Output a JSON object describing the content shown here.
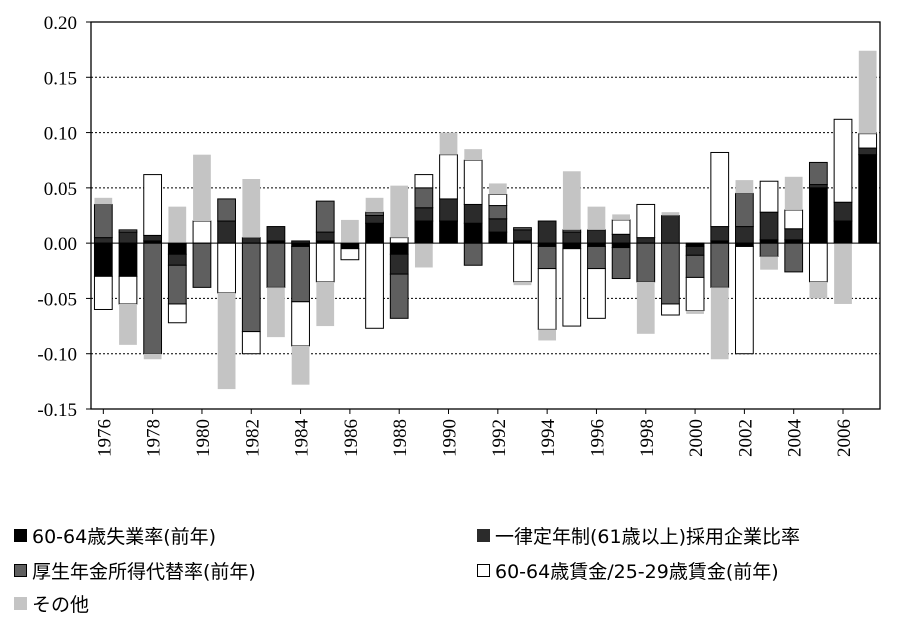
{
  "chart_data": {
    "type": "bar",
    "stacked": true,
    "x": [
      1976,
      1977,
      1978,
      1979,
      1980,
      1981,
      1982,
      1983,
      1984,
      1985,
      1986,
      1987,
      1988,
      1989,
      1990,
      1991,
      1992,
      1993,
      1994,
      1995,
      1996,
      1997,
      1998,
      1999,
      2000,
      2001,
      2002,
      2003,
      2004,
      2005,
      2006,
      2007
    ],
    "x_tick_labels": [
      "1976",
      "1978",
      "1980",
      "1982",
      "1984",
      "1986",
      "1988",
      "1990",
      "1992",
      "1994",
      "1996",
      "1998",
      "2000",
      "2002",
      "2004",
      "2006"
    ],
    "y_tick_labels": [
      "0.20",
      "0.15",
      "0.10",
      "0.05",
      "0.00",
      "-0.05",
      "-0.10",
      "-0.15"
    ],
    "ylim": [
      -0.15,
      0.2
    ],
    "grid": true,
    "legend_position": "bottom",
    "colors": {
      "unemployment": "#000000",
      "retirement": "#2b2b2b",
      "pension": "#5f5f5f",
      "wage": "#ffffff",
      "other": "#c4c4c4"
    },
    "series": [
      {
        "key": "unemployment",
        "name": "60-64歳失業率(前年)",
        "values": [
          -0.03,
          -0.03,
          0.002,
          -0.01,
          0,
          0,
          0,
          0.002,
          -0.003,
          0.002,
          -0.005,
          0.018,
          -0.01,
          0.02,
          0.02,
          0.018,
          0.01,
          0.002,
          -0.003,
          -0.005,
          -0.003,
          -0.004,
          0,
          0,
          -0.003,
          0.002,
          -0.003,
          0.003,
          0.003,
          0.05,
          0.02,
          0.08
        ]
      },
      {
        "key": "retirement",
        "name": "一律定年制(61歳以上)採用企業比率",
        "values": [
          0.005,
          0.01,
          0.005,
          -0.01,
          0,
          0.02,
          0.005,
          0.013,
          0.002,
          0.008,
          0,
          0.007,
          -0.018,
          0.012,
          0.02,
          0.017,
          0.012,
          0.01,
          0.02,
          0.01,
          0.012,
          0.008,
          0.005,
          0.025,
          -0.008,
          0.013,
          0.015,
          0.025,
          0.01,
          0.003,
          0.017,
          0.006
        ]
      },
      {
        "key": "pension",
        "name": "厚生年金所得代替率(前年)",
        "values": [
          0.03,
          0.002,
          -0.1,
          -0.035,
          -0.04,
          0.02,
          -0.08,
          -0.04,
          -0.05,
          0.028,
          0,
          0.003,
          -0.04,
          0.018,
          0,
          -0.02,
          0.012,
          0.002,
          -0.02,
          0.002,
          -0.02,
          -0.028,
          -0.035,
          -0.055,
          -0.02,
          -0.04,
          0.03,
          -0.012,
          -0.026,
          0.02,
          0,
          0
        ]
      },
      {
        "key": "wage",
        "name": "60-64歳賃金/25-29歳賃金(前年)",
        "values": [
          -0.03,
          -0.025,
          0.055,
          -0.017,
          0.02,
          -0.045,
          -0.02,
          0,
          -0.04,
          -0.035,
          -0.01,
          -0.077,
          0.005,
          0.012,
          0.04,
          0.04,
          0.01,
          -0.035,
          -0.055,
          -0.07,
          -0.045,
          0.013,
          0.03,
          -0.01,
          -0.03,
          0.067,
          -0.097,
          0.028,
          0.017,
          -0.035,
          0.075,
          0.013
        ]
      },
      {
        "key": "other",
        "name": "その他",
        "values": [
          0.006,
          -0.037,
          -0.005,
          0.033,
          0.06,
          -0.087,
          0.053,
          -0.045,
          -0.035,
          -0.04,
          0.021,
          0.013,
          0.047,
          -0.022,
          0.02,
          0.01,
          0.01,
          -0.003,
          -0.01,
          0.053,
          0.021,
          0.005,
          -0.047,
          0.003,
          -0.003,
          -0.065,
          0.012,
          -0.012,
          0.03,
          -0.015,
          -0.055,
          0.075
        ]
      }
    ]
  }
}
